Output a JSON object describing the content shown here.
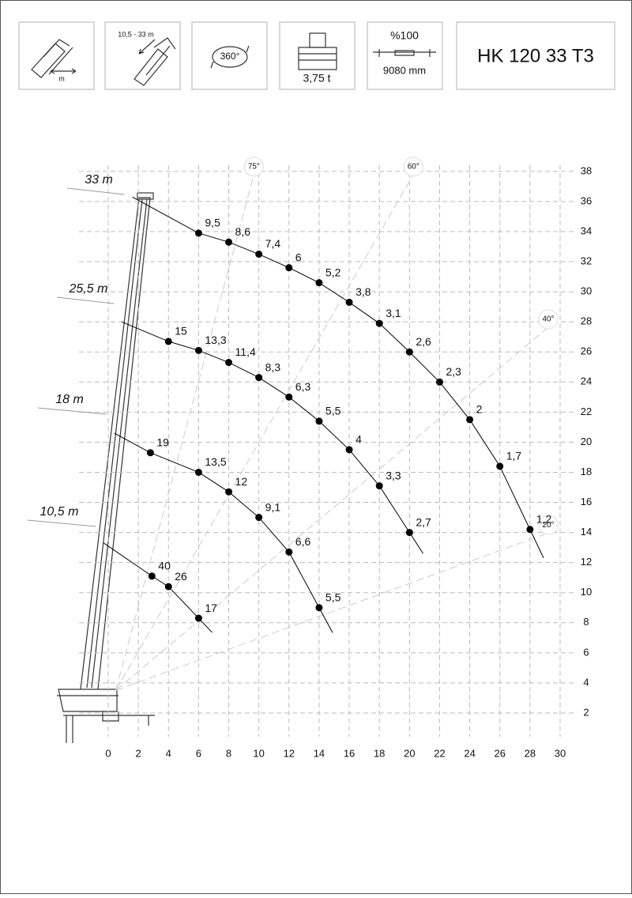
{
  "header": {
    "boxes": [
      "m",
      "10,5 - 33 m",
      "360°",
      "3,75 t",
      "%100",
      "9080 mm"
    ],
    "model": "HK 120 33 T3"
  },
  "chart_data": {
    "type": "scatter",
    "xlim": [
      0,
      30
    ],
    "ylim": [
      0,
      38
    ],
    "xticks": [
      0,
      2,
      4,
      6,
      8,
      10,
      12,
      14,
      16,
      18,
      20,
      22,
      24,
      26,
      28,
      30
    ],
    "yticks": [
      2,
      4,
      6,
      8,
      10,
      12,
      14,
      16,
      18,
      20,
      22,
      24,
      26,
      28,
      30,
      32,
      34,
      36,
      38
    ],
    "grid": true,
    "angle_lines": [
      {
        "value": 75,
        "label": "75°"
      },
      {
        "value": 60,
        "label": "60°"
      },
      {
        "value": 40,
        "label": "40°"
      },
      {
        "value": 20,
        "label": "20°"
      }
    ],
    "series": [
      {
        "name": "33 m",
        "color": "#000000",
        "x": [
          6,
          8,
          10,
          12,
          14,
          16,
          18,
          20,
          22,
          24,
          26,
          28
        ],
        "values": [
          33.9,
          33.3,
          32.5,
          31.6,
          30.6,
          29.3,
          27.9,
          26,
          24,
          21.5,
          18.4,
          14.2
        ],
        "loads": [
          9.5,
          8.6,
          7.4,
          6,
          5.2,
          3.8,
          3.1,
          2.6,
          2.3,
          2,
          1.7,
          1.2
        ],
        "load_labels": [
          "9,5",
          "8,6",
          "7,4",
          "6",
          "5,2",
          "3,8",
          "3,1",
          "2,6",
          "2,3",
          "2",
          "1,7",
          "1,2"
        ]
      },
      {
        "name": "25,5 m",
        "color": "#000000",
        "x": [
          4,
          6,
          8,
          10,
          12,
          14,
          16,
          18,
          20
        ],
        "values": [
          26.7,
          26.1,
          25.3,
          24.3,
          23,
          21.4,
          19.5,
          17.1,
          14
        ],
        "loads": [
          15,
          13.3,
          11.4,
          8.3,
          6.3,
          5.5,
          4,
          3.3,
          2.7
        ],
        "load_labels": [
          "15",
          "13,3",
          "11,4",
          "8,3",
          "6,3",
          "5,5",
          "4",
          "3,3",
          "2,7"
        ]
      },
      {
        "name": "18 m",
        "color": "#000000",
        "x": [
          2.8,
          6,
          8,
          10,
          12,
          14
        ],
        "values": [
          19.3,
          18,
          16.7,
          15,
          12.7,
          9
        ],
        "loads": [
          19,
          13.5,
          12,
          9.1,
          6.6,
          5.5
        ],
        "load_labels": [
          "19",
          "13,5",
          "12",
          "9,1",
          "6,6",
          "5,5"
        ]
      },
      {
        "name": "10,5 m",
        "color": "#000000",
        "x": [
          2.9,
          4,
          6
        ],
        "values": [
          11.1,
          10.4,
          8.3
        ],
        "loads": [
          40,
          26,
          17
        ],
        "load_labels": [
          "40",
          "26",
          "17"
        ]
      }
    ]
  }
}
